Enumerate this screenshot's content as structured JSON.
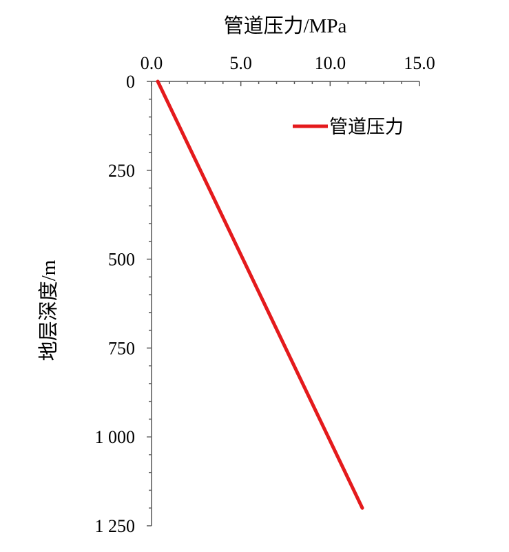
{
  "chart_data": {
    "type": "line",
    "xlabel": "管道压力/MPa",
    "ylabel": "地层深度/m",
    "x_ticks": [
      "0.0",
      "5.0",
      "10.0",
      "15.0"
    ],
    "x_tick_values": [
      0,
      5,
      10,
      15
    ],
    "y_ticks": [
      "0",
      "250",
      "500",
      "750",
      "1 000",
      "1 250"
    ],
    "y_tick_values": [
      0,
      250,
      500,
      750,
      1000,
      1250
    ],
    "xlim": [
      0,
      15
    ],
    "ylim": [
      0,
      1250
    ],
    "x_axis_position": "top",
    "y_axis_inverted": true,
    "grid": false,
    "legend_position": "top-right",
    "series": [
      {
        "name": "管道压力",
        "color": "#e41a1c",
        "points": [
          {
            "x": 0.35,
            "depth": 0
          },
          {
            "x": 11.8,
            "depth": 1200
          }
        ]
      }
    ]
  }
}
